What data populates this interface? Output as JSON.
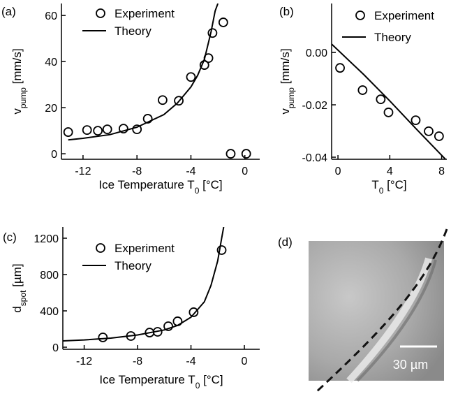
{
  "chart_data": [
    {
      "type": "scatter",
      "panel_label": "(a)",
      "xlabel": [
        "Ice Temperature T",
        "0",
        " [°C]"
      ],
      "ylabel": [
        "v",
        "pump",
        " [mm/s]"
      ],
      "xlim": [
        -13.6,
        1.1
      ],
      "ylim": [
        -2.4,
        65.2
      ],
      "xticks": [
        -12,
        -8,
        -4,
        0
      ],
      "yticks": [
        0,
        20,
        40,
        60
      ],
      "series": [
        {
          "name": "Experiment",
          "type": "scatter",
          "color": "#000000",
          "x": [
            -13.1,
            -11.7,
            -10.9,
            -10.2,
            -9.0,
            -8.0,
            -7.2,
            -6.1,
            -4.9,
            -4.0,
            -3.0,
            -2.7,
            -2.4,
            -1.6,
            -1.05,
            0.1
          ],
          "values": [
            9.4,
            10.3,
            10.0,
            10.6,
            10.9,
            10.6,
            15.2,
            23.3,
            23.0,
            33.3,
            38.5,
            41.5,
            52.4,
            57.0,
            0,
            0
          ]
        },
        {
          "name": "Theory",
          "type": "line",
          "color": "#000000",
          "x": [
            -13.1,
            -12,
            -10,
            -8,
            -6,
            -5,
            -4,
            -3.5,
            -3,
            -2.5,
            -2.2,
            -2.0
          ],
          "values": [
            6,
            6.7,
            8.3,
            11.5,
            17,
            22,
            29,
            34,
            41,
            53,
            62,
            65.2
          ]
        }
      ]
    },
    {
      "type": "scatter",
      "panel_label": "(b)",
      "xlabel": [
        "T",
        "0",
        " [°C]"
      ],
      "ylabel": [
        "v",
        "pump",
        " [mm/s]"
      ],
      "xlim": [
        -0.49,
        8.4
      ],
      "ylim": [
        -0.0408,
        0.0187
      ],
      "xticks": [
        0,
        4,
        8
      ],
      "yticks": [
        {
          "value": 0,
          "label": "0.00"
        },
        {
          "value": -0.02,
          "label": "-0.02"
        },
        {
          "value": -0.04,
          "label": "-0.04"
        }
      ],
      "series": [
        {
          "name": "Experiment",
          "type": "scatter",
          "color": "#000000",
          "x": [
            0.16,
            1.9,
            3.3,
            3.9,
            6.0,
            7.0,
            7.8
          ],
          "values": [
            -0.0059,
            -0.0144,
            -0.0179,
            -0.0229,
            -0.0259,
            -0.0301,
            -0.032
          ]
        },
        {
          "name": "Theory",
          "type": "line",
          "color": "#000000",
          "x": [
            -0.49,
            2,
            4,
            6,
            8.3
          ],
          "values": [
            0.0032,
            -0.0085,
            -0.0185,
            -0.029,
            -0.0408
          ]
        }
      ]
    },
    {
      "type": "scatter",
      "panel_label": "(c)",
      "xlabel": [
        "Ice Temperature T",
        "0",
        " [°C]"
      ],
      "ylabel": [
        "d",
        "spot",
        " [µm]"
      ],
      "xlim": [
        -13.6,
        1.15
      ],
      "ylim": [
        -23,
        1323
      ],
      "xticks": [
        -12,
        -8,
        -4,
        0
      ],
      "yticks": [
        0,
        400,
        800,
        1200
      ],
      "series": [
        {
          "name": "Experiment",
          "type": "scatter",
          "color": "#000000",
          "x": [
            -10.6,
            -8.5,
            -7.1,
            -6.5,
            -5.7,
            -5.0,
            -3.8,
            -1.7
          ],
          "values": [
            108,
            123,
            161,
            169,
            231,
            285,
            385,
            1069
          ]
        },
        {
          "name": "Theory",
          "type": "line",
          "color": "#000000",
          "x": [
            -13.6,
            -12,
            -10,
            -8,
            -6,
            -5,
            -4,
            -3,
            -2.5,
            -2,
            -1.7,
            -1.55
          ],
          "values": [
            69,
            80,
            100,
            135,
            190,
            240,
            330,
            500,
            680,
            950,
            1200,
            1323
          ]
        }
      ]
    }
  ],
  "image_panel": {
    "panel_label": "(d)",
    "scale_bar": "30 µm"
  }
}
